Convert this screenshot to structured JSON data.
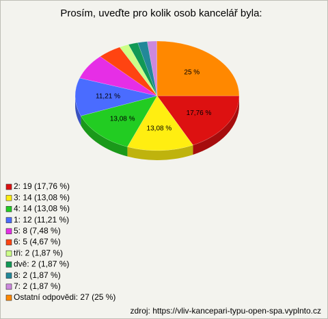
{
  "chart_data": {
    "type": "pie",
    "title": "Prosím, uveďte pro kolik osob kancelář byla:",
    "categories": [
      "2: 19 (17,76 %)",
      "3: 14 (13,08 %)",
      "4: 14 (13,08 %)",
      "1: 12 (11,21 %)",
      "5: 8 (7,48 %)",
      "6: 5 (4,67 %)",
      "tři: 2 (1,87 %)",
      "dvě: 2 (1,87 %)",
      "8: 2 (1,87 %)",
      "7: 2 (1,87 %)",
      "Ostatní odpovědi: 27 (25 %)"
    ],
    "values": [
      17.76,
      13.08,
      13.08,
      11.21,
      7.48,
      4.67,
      1.87,
      1.87,
      1.87,
      1.87,
      25
    ],
    "value_labels": [
      "17,76 %",
      "13,08 %",
      "13,08 %",
      "11,21 %",
      null,
      null,
      null,
      null,
      null,
      null,
      "25 %"
    ],
    "colors": [
      "#dd1111",
      "#ffee11",
      "#22cc22",
      "#4a6cff",
      "#e62ee6",
      "#ff4411",
      "#ccff88",
      "#119955",
      "#228899",
      "#cc88dd",
      "#ff8800"
    ],
    "source": "zdroj: https://vliv-kancepari-typu-open-spa.vyplnto.cz"
  }
}
